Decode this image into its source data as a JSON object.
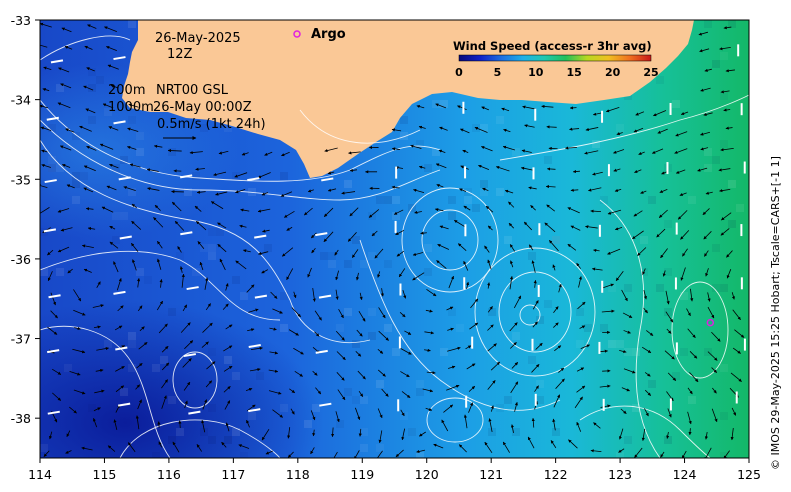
{
  "map": {
    "date": "26-May-2025",
    "time": "12Z",
    "depth_top": "200m",
    "depth_bottom": "1000m",
    "analysis": "NRT00 GSL",
    "analysis_time": "26-May 00:00Z",
    "scale_label": "0.5m/s (1kt 24h)",
    "argo_label": "Argo",
    "credit": "© IMOS 29-May-2025 15:25 Hobart; Tscale=CARS+[-1 1]",
    "legend": {
      "title": "Wind Speed (access-r 3hr avg)",
      "ticks": [
        "0",
        "5",
        "10",
        "15",
        "20",
        "25"
      ],
      "min": 0,
      "max": 25,
      "colors": [
        "#08087a",
        "#1020c8",
        "#1e6fe0",
        "#1fb0e8",
        "#20c8b0",
        "#22c05a",
        "#b8d820",
        "#f0c020",
        "#f07020",
        "#c81818"
      ]
    },
    "x_ticks": [
      "114",
      "115",
      "116",
      "117",
      "118",
      "119",
      "120",
      "121",
      "122",
      "123",
      "124",
      "125"
    ],
    "y_ticks": [
      "-33",
      "-34",
      "-35",
      "-36",
      "-37",
      "-38"
    ],
    "lon_range": [
      114,
      125
    ],
    "lat_range": [
      -38.5,
      -33
    ],
    "argo_floats": [
      {
        "lon": 124.4,
        "lat": -36.8
      }
    ],
    "colors": {
      "land": "#fac896",
      "argo": "#e020e0"
    }
  }
}
